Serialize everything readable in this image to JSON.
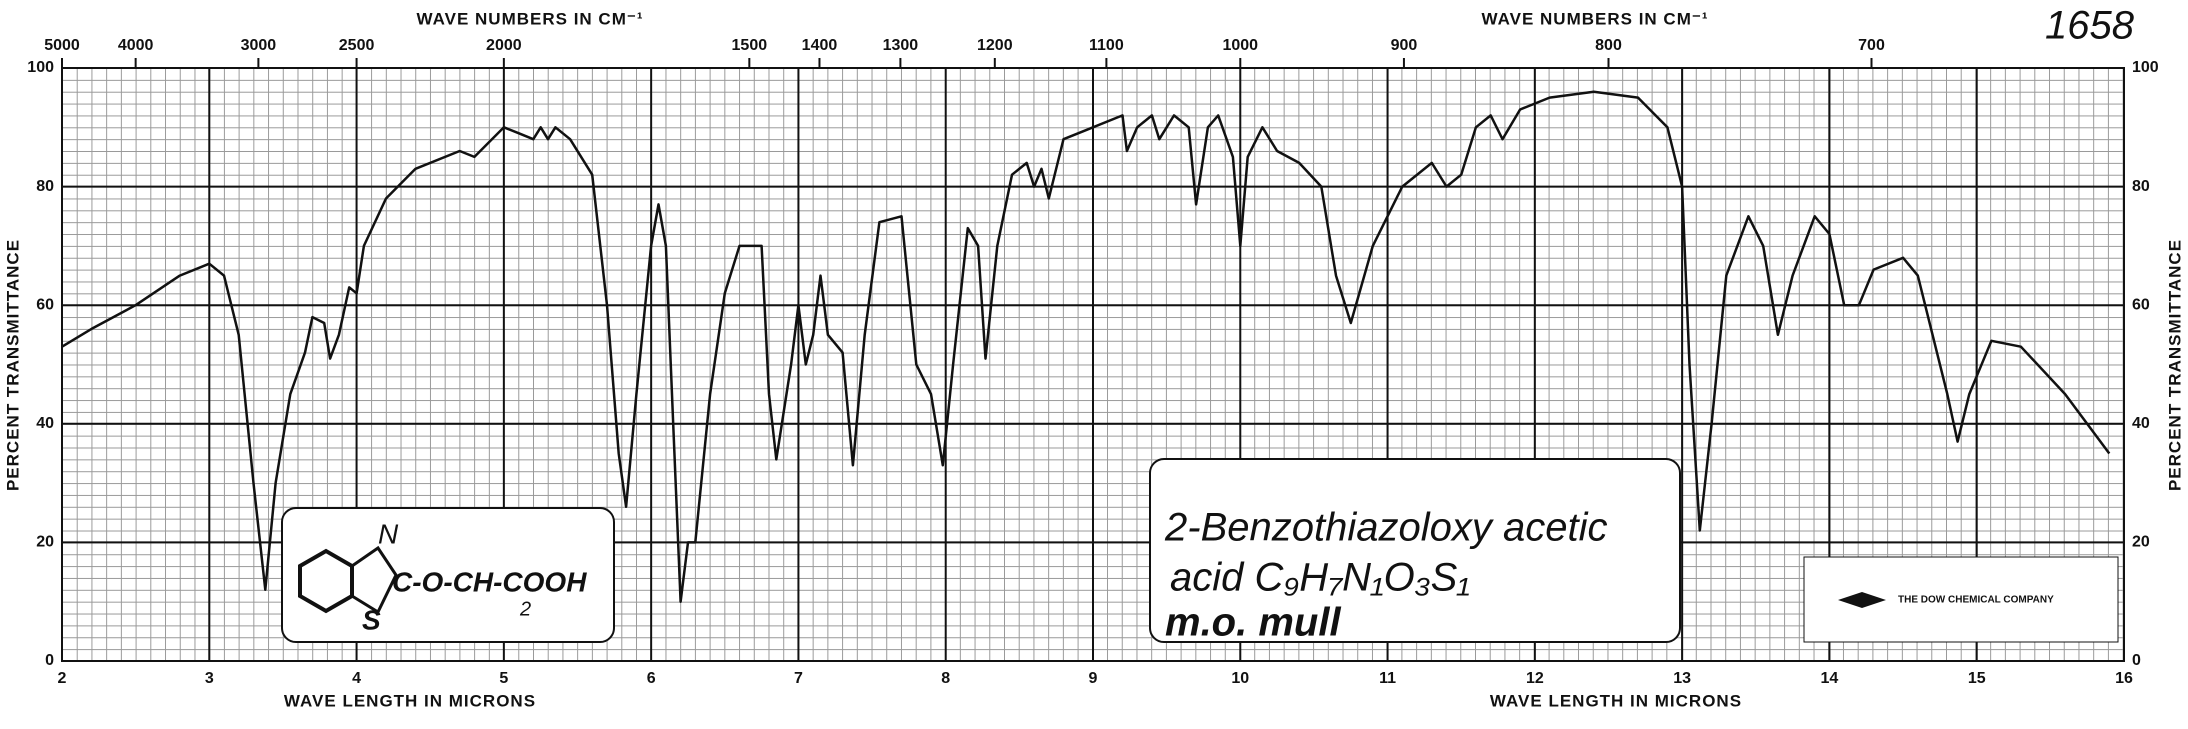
{
  "chart_data": {
    "type": "line",
    "x_label": "WAVE LENGTH IN MICRONS",
    "x2_label": "WAVE NUMBERS IN CM⁻¹",
    "y_label": "PERCENT TRANSMITTANCE",
    "sample_id": "1658",
    "compound_name": "2-Benzothiazoloxy acetic",
    "formula": "acid  C₉H₇N₁O₃S₁",
    "medium": "m.o. mull",
    "company": "THE DOW CHEMICAL COMPANY",
    "structure": {
      "ring_n": "N",
      "chain": "C-O-CH-COOH",
      "subscript": "2",
      "ring_s": "S"
    },
    "color": "#111111",
    "grid": true,
    "xlim": [
      2,
      16
    ],
    "xticks": [
      2,
      3,
      4,
      5,
      6,
      7,
      8,
      9,
      10,
      11,
      12,
      13,
      14,
      15,
      16
    ],
    "x2ticks": [
      5000,
      4000,
      3000,
      2500,
      2000,
      1500,
      1400,
      1300,
      1200,
      1100,
      1000,
      900,
      800,
      700
    ],
    "ylim": [
      0,
      100
    ],
    "yticks": [
      0,
      20,
      40,
      60,
      80,
      100
    ],
    "x": [
      2.0,
      2.2,
      2.5,
      2.8,
      3.0,
      3.1,
      3.2,
      3.3,
      3.38,
      3.45,
      3.55,
      3.65,
      3.7,
      3.78,
      3.82,
      3.88,
      3.95,
      4.0,
      4.05,
      4.2,
      4.4,
      4.7,
      4.8,
      5.0,
      5.1,
      5.2,
      5.25,
      5.3,
      5.35,
      5.45,
      5.6,
      5.7,
      5.78,
      5.83,
      5.9,
      6.0,
      6.05,
      6.1,
      6.15,
      6.2,
      6.25,
      6.3,
      6.4,
      6.5,
      6.6,
      6.75,
      6.8,
      6.85,
      6.95,
      7.0,
      7.05,
      7.1,
      7.15,
      7.2,
      7.3,
      7.37,
      7.45,
      7.55,
      7.7,
      7.8,
      7.9,
      7.98,
      8.05,
      8.15,
      8.22,
      8.27,
      8.35,
      8.45,
      8.55,
      8.6,
      8.65,
      8.7,
      8.8,
      9.0,
      9.2,
      9.23,
      9.3,
      9.4,
      9.45,
      9.55,
      9.65,
      9.7,
      9.78,
      9.85,
      9.95,
      10.0,
      10.05,
      10.15,
      10.25,
      10.4,
      10.55,
      10.65,
      10.75,
      10.9,
      11.1,
      11.3,
      11.4,
      11.5,
      11.6,
      11.7,
      11.78,
      11.9,
      12.1,
      12.4,
      12.7,
      12.9,
      13.0,
      13.05,
      13.12,
      13.2,
      13.3,
      13.45,
      13.55,
      13.65,
      13.75,
      13.9,
      14.0,
      14.1,
      14.2,
      14.3,
      14.5,
      14.6,
      14.8,
      14.87,
      14.95,
      15.1,
      15.3,
      15.6,
      15.9
    ],
    "values": [
      53,
      56,
      60,
      65,
      67,
      65,
      55,
      30,
      12,
      30,
      45,
      52,
      58,
      57,
      51,
      55,
      63,
      62,
      70,
      78,
      83,
      86,
      85,
      90,
      89,
      88,
      90,
      88,
      90,
      88,
      82,
      60,
      35,
      26,
      45,
      70,
      77,
      70,
      40,
      10,
      20,
      20,
      45,
      62,
      70,
      70,
      45,
      34,
      50,
      60,
      50,
      55,
      65,
      55,
      52,
      33,
      55,
      74,
      75,
      50,
      45,
      33,
      50,
      73,
      70,
      51,
      70,
      82,
      84,
      80,
      83,
      78,
      88,
      90,
      92,
      86,
      90,
      92,
      88,
      92,
      90,
      77,
      90,
      92,
      85,
      70,
      85,
      90,
      86,
      84,
      80,
      65,
      57,
      70,
      80,
      84,
      80,
      82,
      90,
      92,
      88,
      93,
      95,
      96,
      95,
      90,
      80,
      50,
      22,
      40,
      65,
      75,
      70,
      55,
      65,
      75,
      72,
      60,
      60,
      66,
      68,
      65,
      45,
      37,
      45,
      54,
      53,
      45,
      35
    ]
  }
}
